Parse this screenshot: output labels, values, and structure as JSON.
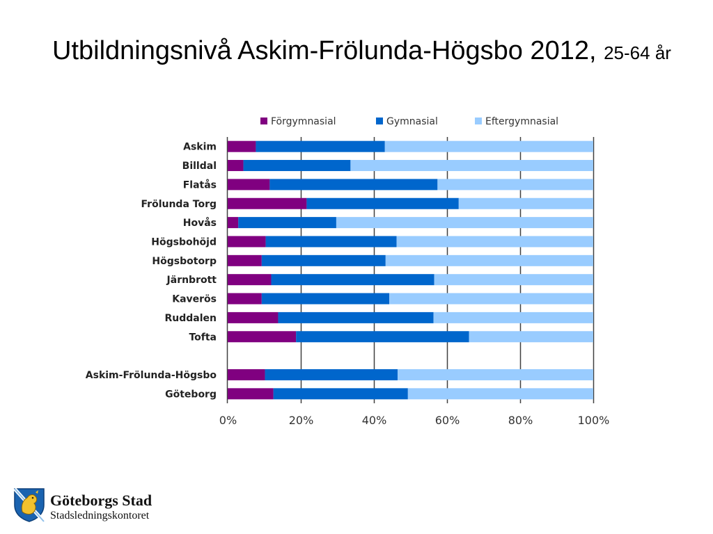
{
  "title": {
    "main": "Utbildningsnivå Askim-Frölunda-Högsbo 2012,",
    "sub": "25-64 år"
  },
  "chart_data": {
    "type": "bar",
    "orientation": "horizontal",
    "stacked": "percent",
    "categories": [
      "Askim",
      "Billdal",
      "Flatås",
      "Frölunda Torg",
      "Hovås",
      "Högsbohöjd",
      "Högsbotorp",
      "Järnbrott",
      "Kaverös",
      "Ruddalen",
      "Tofta",
      "",
      "Askim-Frölunda-Högsbo",
      "Göteborg"
    ],
    "series": [
      {
        "name": "Förgymnasial",
        "color": "#800080",
        "values": [
          7.7,
          4.3,
          11.5,
          21.6,
          2.9,
          10.4,
          9.3,
          11.9,
          9.3,
          13.8,
          18.7,
          null,
          10.2,
          12.5
        ]
      },
      {
        "name": "Gymnasial",
        "color": "#0066cc",
        "values": [
          35.3,
          29.3,
          45.9,
          41.6,
          26.8,
          35.8,
          33.9,
          44.6,
          34.9,
          42.5,
          47.3,
          null,
          36.3,
          36.8
        ]
      },
      {
        "name": "Eftergymnasial",
        "color": "#99ccff",
        "values": [
          57.0,
          66.4,
          42.6,
          36.8,
          70.3,
          53.8,
          56.8,
          43.5,
          55.8,
          43.7,
          34.0,
          null,
          53.5,
          50.7
        ]
      }
    ],
    "xlim": [
      0,
      100
    ],
    "xticks": [
      "0%",
      "20%",
      "40%",
      "60%",
      "80%",
      "100%"
    ],
    "grid": true,
    "legend": "top"
  },
  "footer": {
    "org": "Göteborgs Stad",
    "dept": "Stadsledningskontoret"
  }
}
